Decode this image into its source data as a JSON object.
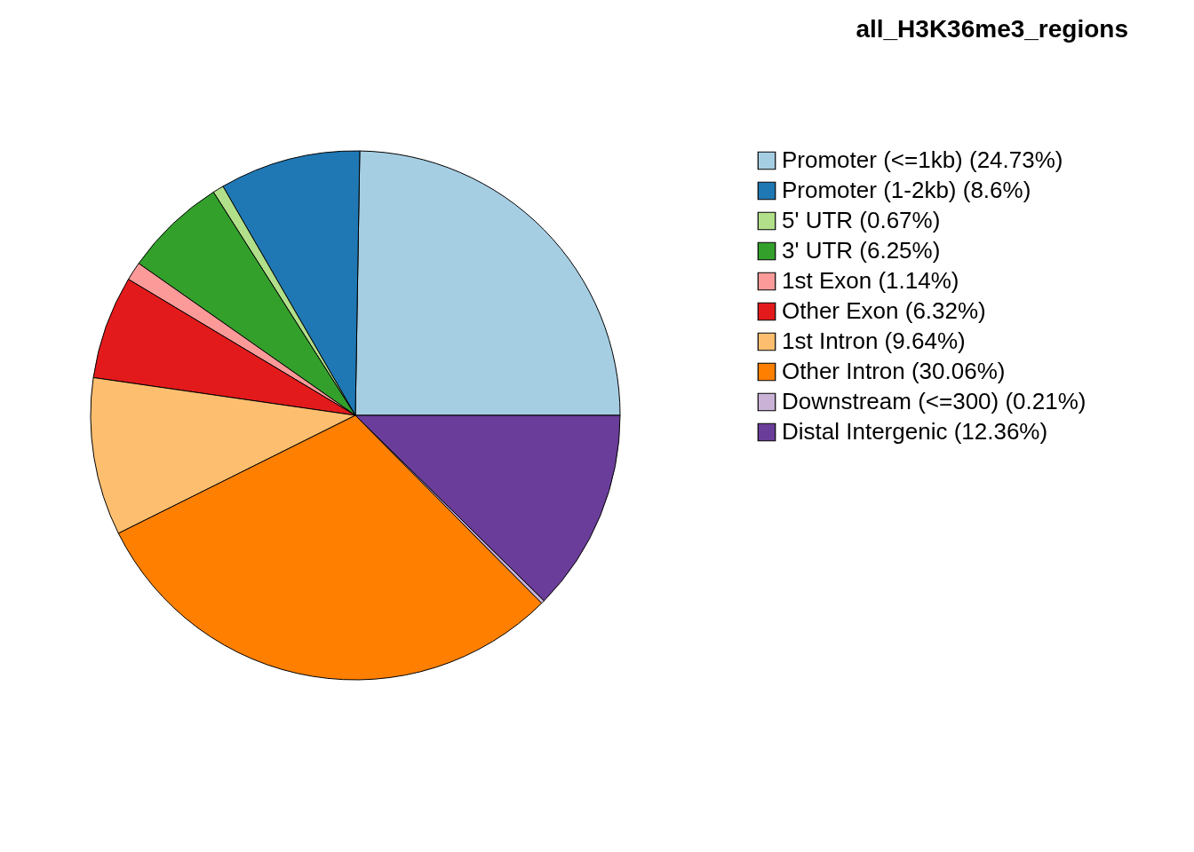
{
  "chart_data": {
    "type": "pie",
    "title": "all_H3K36me3_regions",
    "categories": [
      "Promoter (<=1kb) (24.73%)",
      "Promoter (1-2kb) (8.6%)",
      "5' UTR (0.67%)",
      "3' UTR (6.25%)",
      "1st Exon (1.14%)",
      "Other Exon (6.32%)",
      "1st Intron (9.64%)",
      "Other Intron (30.06%)",
      "Downstream (<=300) (0.21%)",
      "Distal Intergenic (12.36%)"
    ],
    "values": [
      24.73,
      8.6,
      0.67,
      6.25,
      1.14,
      6.32,
      9.64,
      30.06,
      0.21,
      12.36
    ],
    "colors": [
      "#a6cee3",
      "#1f78b4",
      "#b2df8a",
      "#33a02c",
      "#fb9a99",
      "#e31a1c",
      "#fdbf6f",
      "#ff7f00",
      "#cab2d6",
      "#6a3d9a"
    ],
    "legend": "right"
  }
}
